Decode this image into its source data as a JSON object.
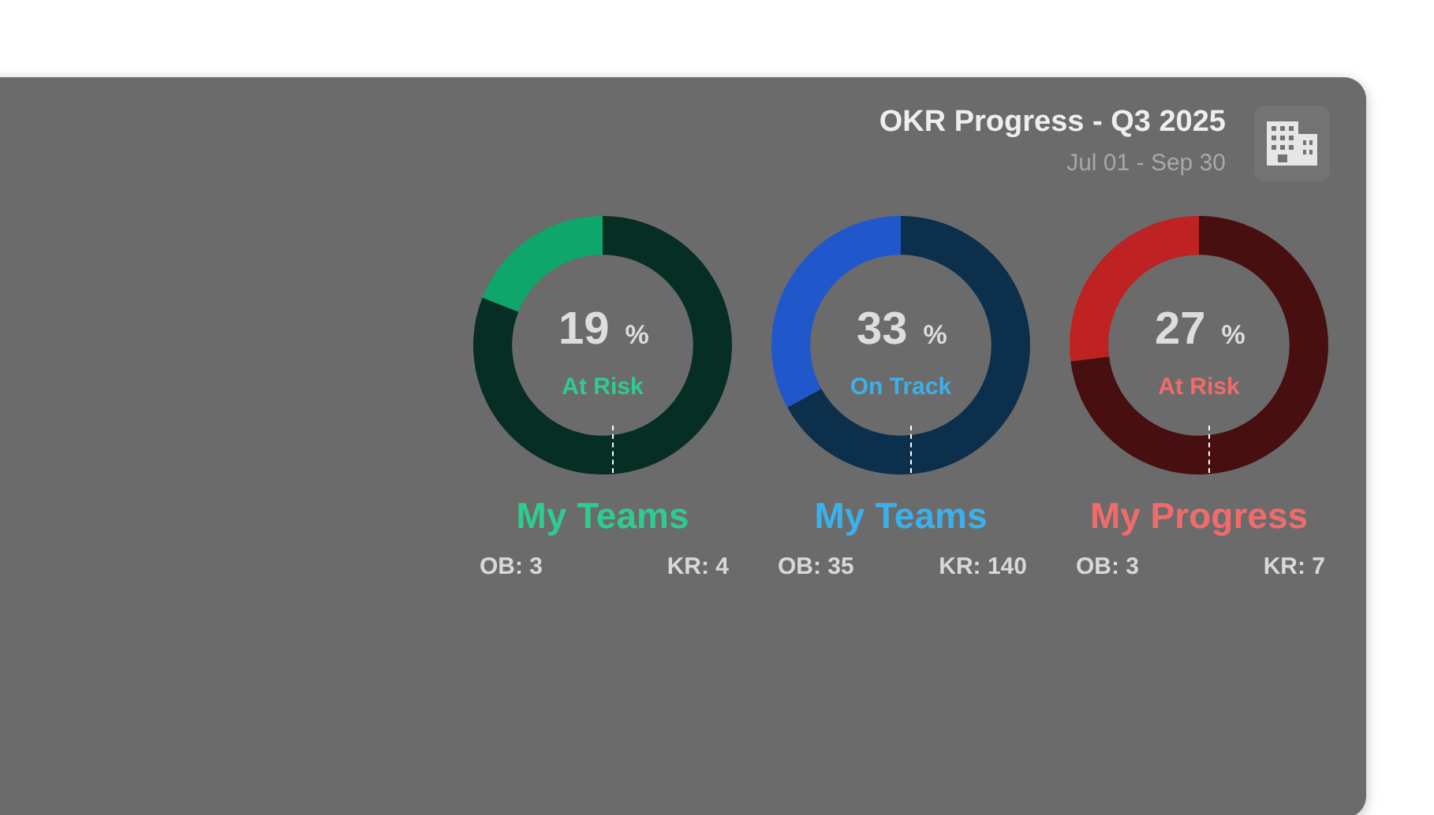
{
  "chart_data": [
    {
      "type": "other",
      "title": "OKR Progress - Q3 2025",
      "subtitle": "Jul 01 - Sep 30"
    },
    {
      "type": "donut",
      "title": "My Teams",
      "categories": [
        null,
        null
      ],
      "values": [
        19,
        81
      ],
      "colors": [
        "#0ea66b",
        "#062e24"
      ],
      "value_labels": [
        "19 %",
        null
      ],
      "annotations": [
        "At Risk",
        "OB: 3",
        "KR: 4"
      ],
      "legend": false
    },
    {
      "type": "donut",
      "title": "My Teams",
      "categories": [
        null,
        null
      ],
      "values": [
        33,
        67
      ],
      "colors": [
        "#2058cc",
        "#0c2f4c"
      ],
      "value_labels": [
        "33 %",
        null
      ],
      "annotations": [
        "On Track",
        "OB: 35",
        "KR: 140"
      ],
      "legend": false
    },
    {
      "type": "donut",
      "title": "My Progress",
      "categories": [
        null,
        null
      ],
      "values": [
        27,
        73
      ],
      "colors": [
        "#be2222",
        "#470f10"
      ],
      "value_labels": [
        "27 %",
        null
      ],
      "annotations": [
        "At Risk",
        "OB: 3",
        "KR: 7"
      ],
      "legend": false
    }
  ]
}
